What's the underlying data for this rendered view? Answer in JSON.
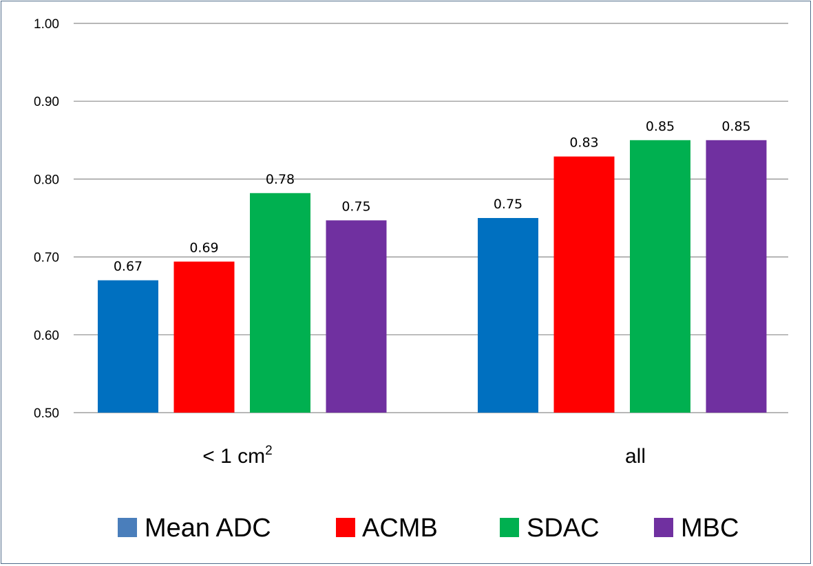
{
  "chart_data": {
    "type": "bar",
    "title": "",
    "xlabel": "",
    "ylabel": "",
    "ylim": [
      0.5,
      1.0
    ],
    "yticks": [
      0.5,
      0.6,
      0.7,
      0.8,
      0.9,
      1.0
    ],
    "ytick_labels": [
      "0.50",
      "0.60",
      "0.70",
      "0.80",
      "0.90",
      "1.00"
    ],
    "grid": true,
    "legend_position": "bottom",
    "categories": [
      {
        "label": "< 1 cm",
        "superscript": "2"
      },
      {
        "label": "all",
        "superscript": ""
      }
    ],
    "series": [
      {
        "name": "Mean ADC",
        "color": "#0070c0",
        "legend_color": "#4a7ebb",
        "values": [
          0.67,
          0.75
        ],
        "labels": [
          "0.67",
          "0.75"
        ]
      },
      {
        "name": "ACMB",
        "color": "#ff0000",
        "legend_color": "#ff0000",
        "values": [
          0.694,
          0.829
        ],
        "labels": [
          "0.69",
          "0.83"
        ]
      },
      {
        "name": "SDAC",
        "color": "#00b050",
        "legend_color": "#00b050",
        "values": [
          0.782,
          0.85
        ],
        "labels": [
          "0.78",
          "0.85"
        ]
      },
      {
        "name": "MBC",
        "color": "#7030a0",
        "legend_color": "#7030a0",
        "values": [
          0.747,
          0.85
        ],
        "labels": [
          "0.75",
          "0.85"
        ]
      }
    ]
  }
}
